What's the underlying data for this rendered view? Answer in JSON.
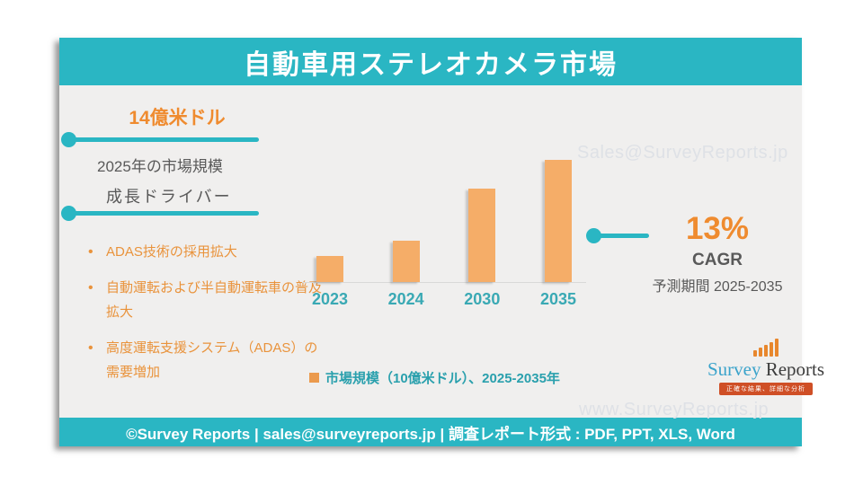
{
  "title": "自動車用ステレオカメラ市場",
  "colors": {
    "teal": "#2ab6c3",
    "orange_accent": "#ef8b2f",
    "bar_orange": "#f5ad68",
    "gray_text": "#595959",
    "panel_bg": "#f0efee",
    "watermark": "#dee1e6"
  },
  "left": {
    "market_value": "14億米ドル",
    "market_caption": "2025年の市場規模",
    "drivers_heading": "成長ドライバー",
    "drivers": [
      "ADAS技術の採用拡大",
      "自動運転および半自動運転車の普及拡大",
      "高度運転支援システム（ADAS）の需要増加"
    ]
  },
  "chart_data": {
    "type": "bar",
    "categories": [
      "2023",
      "2024",
      "2030",
      "2035"
    ],
    "values": [
      1.0,
      1.6,
      3.6,
      4.7
    ],
    "unit": "10億米ドル",
    "title": "",
    "xlabel": "",
    "ylabel": "",
    "ylim": [
      0,
      5
    ],
    "legend": "市場規模（10億米ドル）、2025-2035年",
    "legend_position": "bottom",
    "grid": false,
    "y_axis_visible": false,
    "bar_color": "#f5ad68",
    "note": "values estimated from bar heights; 2025 market size 1.4B USD, CAGR 13% (2025-2035)"
  },
  "right": {
    "cagr_value": "13%",
    "cagr_label": "CAGR",
    "forecast_period": "予測期間 2025-2035"
  },
  "watermarks": {
    "top": "Sales@SurveyReports.jp",
    "bottom": "www.SurveyReports.jp"
  },
  "logo": {
    "name_part1": "Survey",
    "name_part2": " Reports",
    "tagline": "正確な結果、詳細な分析",
    "icon": "bar-chart-icon"
  },
  "footer": "©Survey Reports | sales@surveyreports.jp | 調査レポート形式 : PDF, PPT, XLS, Word"
}
